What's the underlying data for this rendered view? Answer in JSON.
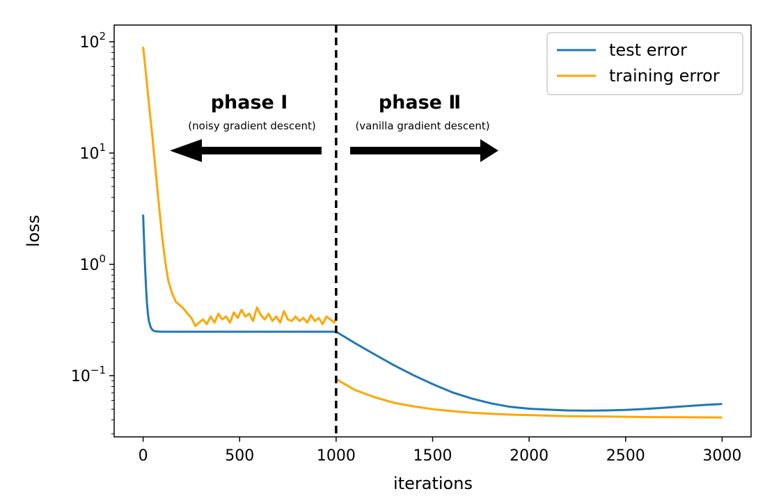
{
  "chart_data": {
    "type": "line",
    "xlabel": "iterations",
    "ylabel": "loss",
    "xlim": [
      -150,
      3150
    ],
    "ylim_log10": [
      -1.55,
      2.15
    ],
    "yscale": "log",
    "x_ticks": [
      0,
      500,
      1000,
      1500,
      2000,
      2500,
      3000
    ],
    "x_tick_labels": [
      "0",
      "500",
      "1000",
      "1500",
      "2000",
      "2500",
      "3000"
    ],
    "y_ticks": [
      {
        "exp": -1,
        "base": "10",
        "sup": "−1"
      },
      {
        "exp": 0,
        "base": "10",
        "sup": "0"
      },
      {
        "exp": 1,
        "base": "10",
        "sup": "1"
      },
      {
        "exp": 2,
        "base": "10",
        "sup": "2"
      }
    ],
    "legend": {
      "position": "top-right",
      "entries": [
        {
          "label": "test error",
          "color": "#1f77b4"
        },
        {
          "label": "training error",
          "color": "#ffa500"
        }
      ]
    },
    "divider_x": 1000,
    "phase1": {
      "title": "phase Ⅰ",
      "subtitle": "(noisy gradient descent)"
    },
    "phase2": {
      "title": "phase Ⅱ",
      "subtitle": "(vanilla gradient descent)"
    },
    "series": [
      {
        "name": "test error",
        "color": "#1f77b4",
        "x": [
          0,
          5,
          10,
          15,
          20,
          25,
          30,
          40,
          50,
          60,
          80,
          100,
          150,
          300,
          500,
          700,
          1000,
          1100,
          1200,
          1300,
          1400,
          1500,
          1600,
          1700,
          1800,
          1900,
          2000,
          2100,
          2200,
          2300,
          2400,
          2500,
          2600,
          2700,
          2800,
          2900,
          3000
        ],
        "y": [
          2.8,
          1.6,
          0.95,
          0.62,
          0.45,
          0.36,
          0.31,
          0.27,
          0.256,
          0.251,
          0.249,
          0.248,
          0.248,
          0.248,
          0.248,
          0.248,
          0.248,
          0.195,
          0.155,
          0.124,
          0.101,
          0.084,
          0.071,
          0.0625,
          0.0565,
          0.0525,
          0.0505,
          0.0495,
          0.0487,
          0.0485,
          0.0487,
          0.0492,
          0.0502,
          0.0515,
          0.053,
          0.0545,
          0.0557
        ]
      },
      {
        "name": "training error",
        "color": "#ffa500",
        "x": [
          0,
          10,
          20,
          30,
          40,
          50,
          60,
          70,
          80,
          90,
          100,
          115,
          130,
          150,
          170,
          190,
          210,
          230,
          250,
          270,
          290,
          310,
          330,
          350,
          370,
          390,
          410,
          430,
          450,
          470,
          490,
          510,
          530,
          550,
          570,
          590,
          610,
          630,
          650,
          670,
          690,
          710,
          730,
          750,
          770,
          790,
          810,
          830,
          850,
          870,
          890,
          910,
          930,
          950,
          970,
          990,
          1000,
          1000,
          1050,
          1100,
          1200,
          1300,
          1400,
          1500,
          1600,
          1700,
          1800,
          1900,
          2000,
          2100,
          2200,
          2300,
          2400,
          2500,
          2600,
          2700,
          2800,
          2900,
          3000
        ],
        "y": [
          90,
          62,
          42,
          28,
          19,
          13,
          8.5,
          5.6,
          3.7,
          2.5,
          1.7,
          1.05,
          0.72,
          0.55,
          0.46,
          0.43,
          0.4,
          0.36,
          0.33,
          0.28,
          0.3,
          0.32,
          0.29,
          0.34,
          0.3,
          0.36,
          0.32,
          0.34,
          0.3,
          0.37,
          0.33,
          0.39,
          0.34,
          0.36,
          0.31,
          0.41,
          0.35,
          0.32,
          0.36,
          0.31,
          0.34,
          0.3,
          0.38,
          0.32,
          0.31,
          0.34,
          0.31,
          0.33,
          0.3,
          0.35,
          0.31,
          0.33,
          0.29,
          0.34,
          0.32,
          0.3,
          0.33,
          0.093,
          0.083,
          0.074,
          0.064,
          0.057,
          0.053,
          0.05,
          0.048,
          0.0465,
          0.0455,
          0.0447,
          0.0442,
          0.0437,
          0.0433,
          0.0431,
          0.0429,
          0.0427,
          0.0425,
          0.0424,
          0.0423,
          0.0422,
          0.0421
        ]
      }
    ]
  }
}
